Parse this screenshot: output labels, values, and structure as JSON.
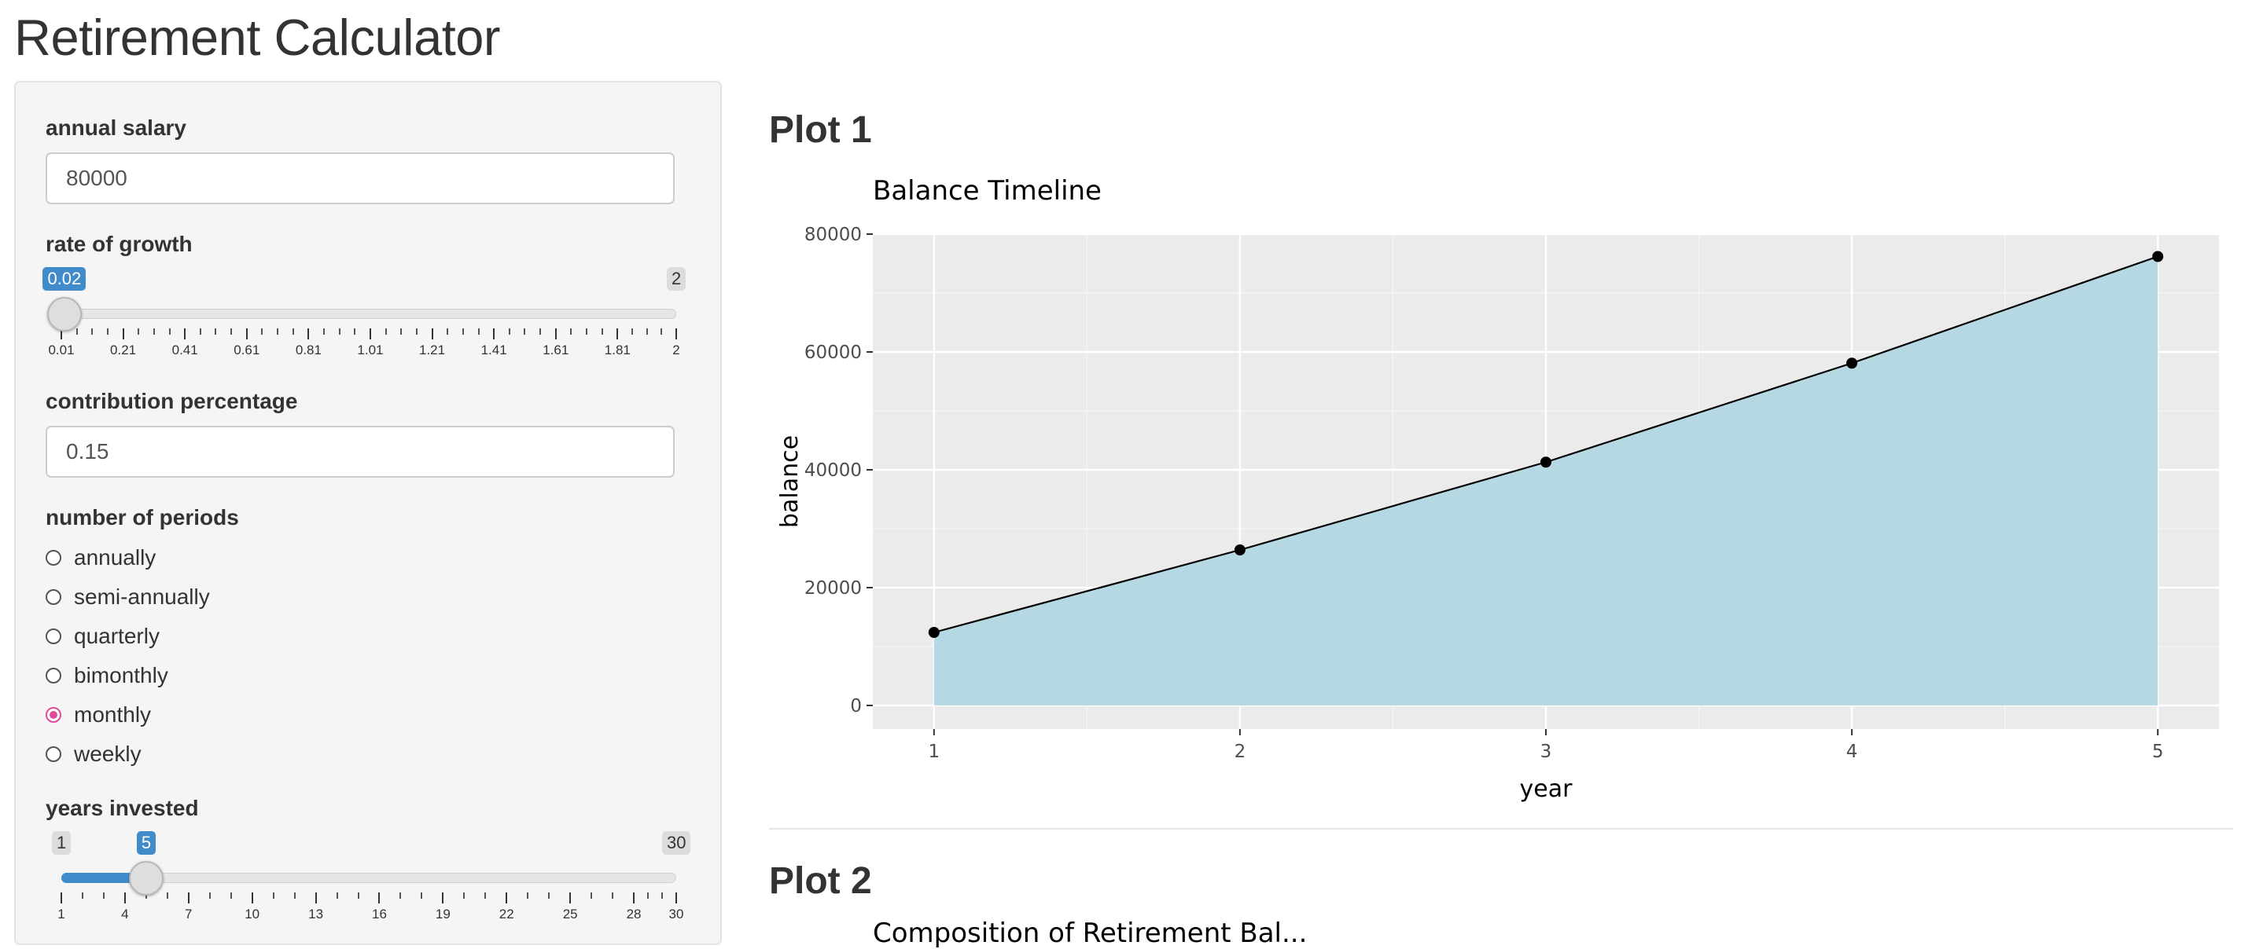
{
  "app_title": "Retirement Calculator",
  "sidebar": {
    "annual_salary": {
      "label": "annual salary",
      "value": "80000"
    },
    "rate_of_growth": {
      "label": "rate of growth",
      "min": 0.01,
      "max": 2,
      "value": 0.02,
      "value_label": "0.02",
      "max_label": "2",
      "tick_labels": [
        "0.01",
        "0.21",
        "0.41",
        "0.61",
        "0.81",
        "1.01",
        "1.21",
        "1.41",
        "1.61",
        "1.81",
        "2"
      ]
    },
    "contribution_percentage": {
      "label": "contribution percentage",
      "value": "0.15"
    },
    "number_of_periods": {
      "label": "number of periods",
      "options": [
        "annually",
        "semi-annually",
        "quarterly",
        "bimonthly",
        "monthly",
        "weekly"
      ],
      "selected": "monthly"
    },
    "years_invested": {
      "label": "years invested",
      "min": 1,
      "max": 30,
      "value": 5,
      "min_label": "1",
      "value_label": "5",
      "max_label": "30",
      "tick_labels": [
        "1",
        "4",
        "7",
        "10",
        "13",
        "16",
        "19",
        "22",
        "25",
        "28",
        "30"
      ]
    }
  },
  "main": {
    "plot1_title": "Plot 1",
    "plot2_title": "Plot 2",
    "plot2_subtitle_partial": "Composition of Retirement Bal..."
  },
  "colors": {
    "accent": "#428bca",
    "radio_selected": "#e14b9b",
    "area_fill": "#b6d8e3",
    "panel_bg": "#ebebeb"
  },
  "chart_data": {
    "type": "area",
    "title": "Balance Timeline",
    "xlabel": "year",
    "ylabel": "balance",
    "x": [
      1,
      2,
      3,
      4,
      5
    ],
    "series": [
      {
        "values": [
          12400,
          26400,
          41300,
          58100,
          76200
        ]
      }
    ],
    "xlim": [
      0.8,
      5.2
    ],
    "ylim": [
      -4000,
      80000
    ],
    "x_ticks": [
      1,
      2,
      3,
      4,
      5
    ],
    "y_ticks": [
      0,
      20000,
      40000,
      60000,
      80000
    ],
    "grid": true,
    "markers": true
  }
}
